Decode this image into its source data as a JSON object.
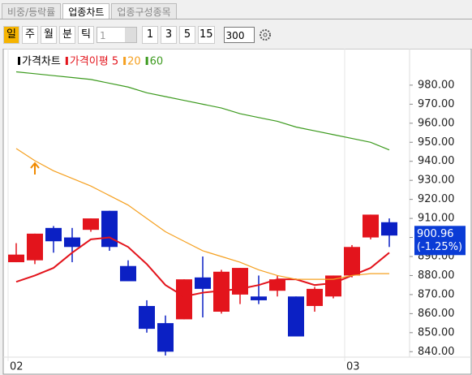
{
  "tabs": [
    "비중/등락률",
    "업종차트",
    "업종구성종목"
  ],
  "toolbar": {
    "periods": [
      "일",
      "주",
      "월",
      "분",
      "틱"
    ],
    "dropdown": "1",
    "intervals": [
      "1",
      "3",
      "5",
      "15"
    ],
    "count": "300"
  },
  "chart_data": {
    "type": "candlestick",
    "categories": [
      "02",
      null,
      null,
      null,
      null,
      null,
      null,
      null,
      null,
      null,
      null,
      null,
      null,
      null,
      null,
      null,
      null,
      null,
      "03",
      null,
      null
    ],
    "candles": {
      "name": "가격차트",
      "up_color": "#e3141c",
      "down_color": "#0b20c4",
      "open": [
        887,
        888,
        905,
        900,
        904,
        914,
        885,
        864,
        855,
        857,
        879,
        861,
        870,
        869,
        872,
        869,
        864,
        869,
        880,
        900,
        908
      ],
      "high": [
        897,
        902,
        906,
        905,
        910,
        914,
        888,
        867,
        859,
        878,
        890,
        883,
        884,
        880,
        880,
        869,
        874,
        880,
        896,
        912,
        910
      ],
      "low": [
        887,
        886,
        892,
        887,
        903,
        893,
        877,
        850,
        838,
        857,
        858,
        860,
        865,
        865,
        869,
        848,
        861,
        868,
        879,
        899,
        895
      ],
      "close": [
        891,
        902,
        898,
        895,
        910,
        895,
        877,
        852,
        840,
        878,
        873,
        882,
        884,
        867,
        878,
        848,
        873,
        880,
        895,
        912,
        901
      ]
    },
    "series": [
      {
        "name": "가격이평 5",
        "color": "#e3141c",
        "values": [
          876.7,
          880,
          884,
          892,
          899,
          900,
          895,
          886,
          875,
          869,
          871,
          872,
          873,
          875,
          878,
          878,
          875,
          876,
          880,
          884,
          892
        ]
      },
      {
        "name": "20",
        "color": "#f5a020",
        "values": [
          946.7,
          940.3,
          935,
          931,
          927,
          922,
          917,
          910,
          903,
          898,
          893,
          890,
          887,
          883,
          880,
          878,
          878,
          878,
          880,
          881,
          881
        ]
      },
      {
        "name": "60",
        "color": "#3c9a1e",
        "values": [
          987,
          986,
          985,
          984,
          983,
          981,
          979,
          976,
          974,
          972,
          970,
          968,
          965,
          963,
          961,
          958,
          956,
          954,
          952,
          950,
          946
        ]
      }
    ],
    "ylim": [
      835,
      1000
    ],
    "yticks": [
      {
        "value": 840,
        "label": "840.00"
      },
      {
        "value": 850,
        "label": "850.00"
      },
      {
        "value": 860,
        "label": "860.00"
      },
      {
        "value": 870,
        "label": "870.00"
      },
      {
        "value": 880,
        "label": "880.00"
      },
      {
        "value": 890,
        "label": "890.00"
      },
      {
        "value": 900,
        "label": "900.00"
      },
      {
        "value": 910,
        "label": "910.00"
      },
      {
        "value": 920,
        "label": "920.00"
      },
      {
        "value": 930,
        "label": "930.00"
      },
      {
        "value": 940,
        "label": "940.00"
      },
      {
        "value": 950,
        "label": "950.00"
      },
      {
        "value": 960,
        "label": "960.00"
      },
      {
        "value": 970,
        "label": "970.00"
      },
      {
        "value": 980,
        "label": "980.00"
      }
    ],
    "last_price": 900.96,
    "change": "(-1.25%)"
  }
}
